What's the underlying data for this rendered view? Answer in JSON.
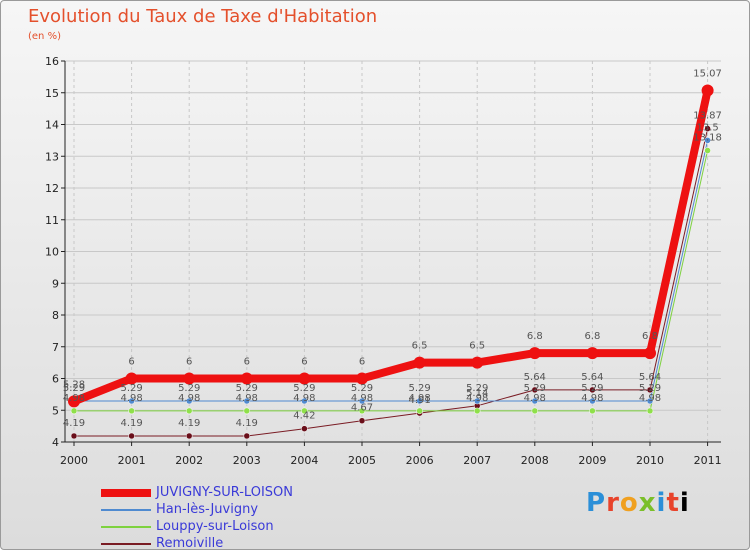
{
  "chart_data": {
    "type": "line",
    "title": "Evolution du Taux de Taxe d'Habitation",
    "subtitle": "(en %)",
    "xlabel": "",
    "ylabel": "(en %)",
    "ylim": [
      4,
      16
    ],
    "yticks": [
      4,
      5,
      6,
      7,
      8,
      9,
      10,
      11,
      12,
      13,
      14,
      15,
      16
    ],
    "categories": [
      "2000",
      "2001",
      "2002",
      "2003",
      "2004",
      "2005",
      "2006",
      "2007",
      "2008",
      "2009",
      "2010",
      "2011"
    ],
    "series": [
      {
        "name": "JUVIGNY-SUR-LOISON",
        "color": "#ee1111",
        "values": [
          5.28,
          6,
          6,
          6,
          6,
          6,
          6.5,
          6.5,
          6.8,
          6.8,
          6.8,
          15.07
        ],
        "labels": [
          "5.28",
          "6",
          "6",
          "6",
          "6",
          "6",
          "6.5",
          "6.5",
          "6.8",
          "6.8",
          "6.8",
          "15.07"
        ]
      },
      {
        "name": "Han-lès-Juvigny",
        "color": "#4f8ad0",
        "values": [
          5.29,
          5.29,
          5.29,
          5.29,
          5.29,
          5.29,
          5.29,
          5.29,
          5.29,
          5.29,
          5.29,
          13.5
        ],
        "labels": [
          "5.29",
          "5.29",
          "5.29",
          "5.29",
          "5.29",
          "5.29",
          "5.29",
          "5.29",
          "5.29",
          "5.29",
          "5.29",
          "13.5"
        ]
      },
      {
        "name": "Louppy-sur-Loison",
        "color": "#7ed23f",
        "values": [
          4.98,
          4.98,
          4.98,
          4.98,
          4.98,
          4.98,
          4.98,
          4.98,
          4.98,
          4.98,
          4.98,
          13.18
        ],
        "labels": [
          "4.98",
          "4.98",
          "4.98",
          "4.98",
          "4.98",
          "4.98",
          "4.98",
          "4.98",
          "4.98",
          "4.98",
          "4.98",
          "13.18"
        ]
      },
      {
        "name": "Remoiville",
        "color": "#7a1c24",
        "values": [
          4.19,
          4.19,
          4.19,
          4.19,
          4.42,
          4.67,
          4.91,
          5.14,
          5.64,
          5.64,
          5.64,
          13.87
        ],
        "labels": [
          "4.19",
          "4.19",
          "4.19",
          "4.19",
          "4.42",
          "4.67",
          "4.91",
          "5.14",
          "5.64",
          "5.64",
          "5.64",
          "13.87"
        ]
      }
    ]
  },
  "brand": {
    "letters": [
      "P",
      "r",
      "o",
      "x",
      "i",
      "t",
      "i"
    ]
  }
}
